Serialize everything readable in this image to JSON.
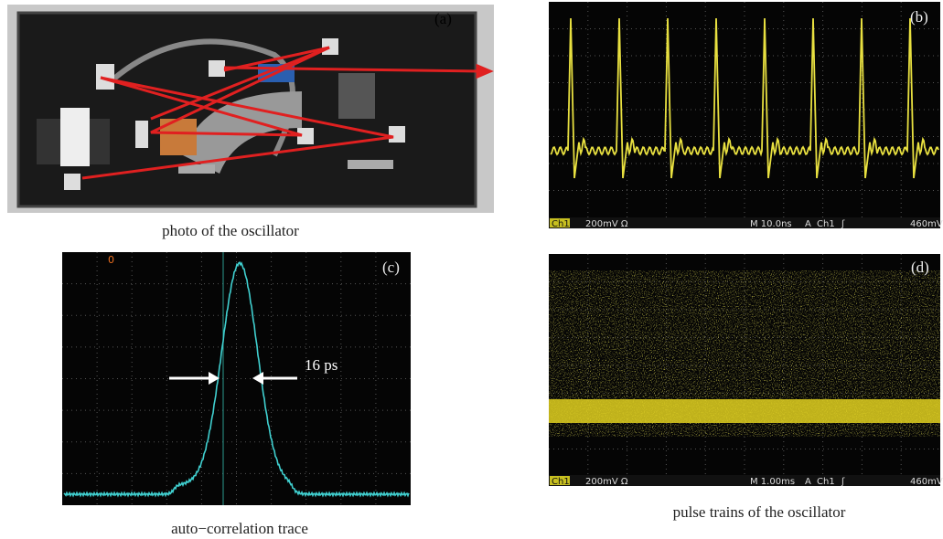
{
  "figure": {
    "panels": [
      {
        "label": "(a)",
        "caption": "photo of the oscillator"
      },
      {
        "label": "(b)",
        "status": [
          "Ch1",
          "200mV Ω",
          "M 10.0ns",
          "A",
          "Ch1",
          "ʃ",
          "460mV"
        ]
      },
      {
        "label": "(c)",
        "marker": "0",
        "annotation": "16 ps",
        "caption": "auto−correlation trace"
      },
      {
        "label": "(d)",
        "status": [
          "Ch1",
          "200mV Ω",
          "M 1.00ms",
          "A",
          "Ch1",
          "ʃ",
          "460mV"
        ],
        "caption": "pulse trains of the oscillator"
      }
    ]
  }
}
